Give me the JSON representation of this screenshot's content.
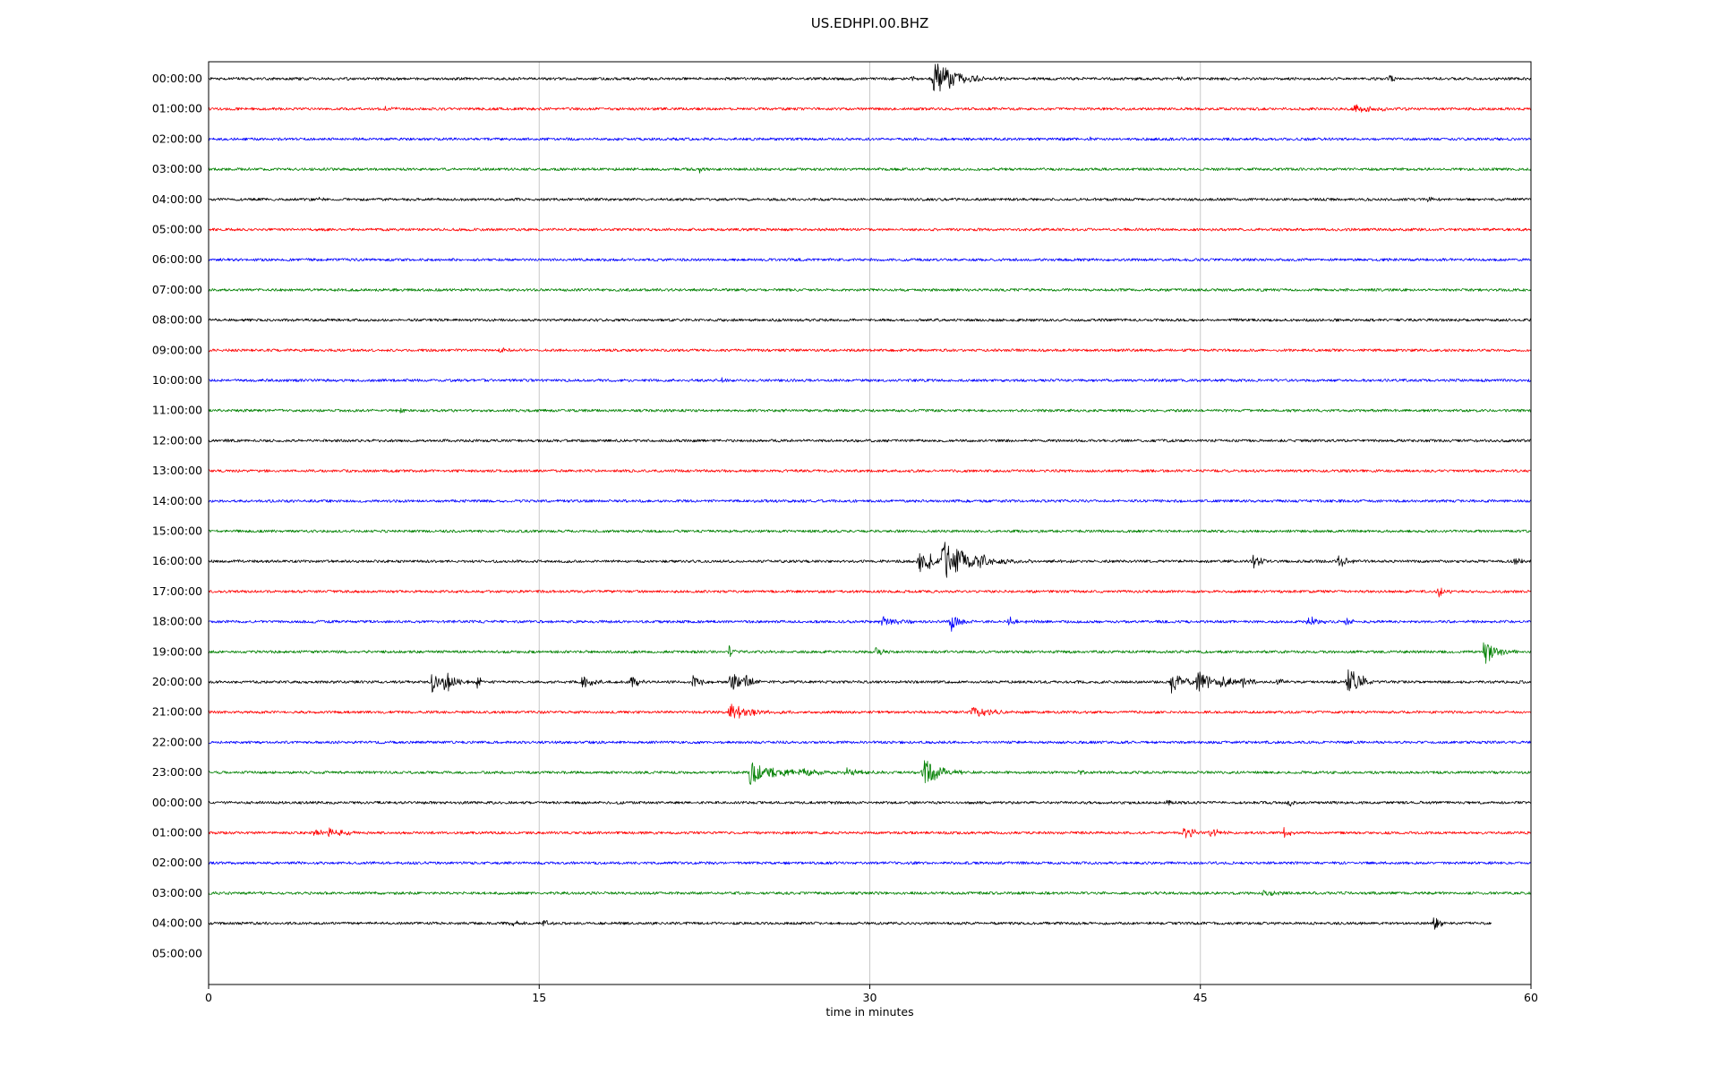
{
  "chart_data": {
    "type": "line",
    "subtype": "seismogram-helicorder",
    "title": "US.EDHPI.00.BHZ",
    "xlabel": "time in minutes",
    "x_range": [
      0,
      60
    ],
    "x_ticks": [
      0,
      15,
      30,
      45,
      60
    ],
    "x_gridlines": [
      15,
      30,
      45
    ],
    "grid_color": "#c8c8c8",
    "trace_colors_cycle": [
      "#000000",
      "#ff0000",
      "#0000ff",
      "#008000"
    ],
    "noise_amp": 1.5,
    "events_format": "[minute, amplitude_px, duration_min]",
    "rows": [
      {
        "label": "00:00:00",
        "color": "#000000",
        "events": [
          [
            31.0,
            4,
            0.12
          ],
          [
            31.9,
            5,
            0.12
          ],
          [
            33.0,
            20,
            0.9
          ],
          [
            33.7,
            9,
            0.5
          ],
          [
            44.0,
            3,
            0.15
          ],
          [
            53.6,
            4,
            0.2
          ]
        ]
      },
      {
        "label": "01:00:00",
        "color": "#ff0000",
        "events": [
          [
            8.0,
            2.5,
            0.3
          ],
          [
            52.0,
            4,
            1.2
          ]
        ]
      },
      {
        "label": "02:00:00",
        "color": "#0000ff",
        "events": [
          [
            40.0,
            2.5,
            0.2
          ]
        ]
      },
      {
        "label": "03:00:00",
        "color": "#008000",
        "events": [
          [
            22.3,
            4,
            0.15
          ],
          [
            25.0,
            3,
            0.12
          ],
          [
            35.0,
            2.5,
            0.2
          ]
        ]
      },
      {
        "label": "04:00:00",
        "color": "#000000",
        "events": [
          [
            5.0,
            2.5,
            0.2
          ],
          [
            55.3,
            4,
            0.25
          ]
        ]
      },
      {
        "label": "05:00:00",
        "color": "#ff0000",
        "events": []
      },
      {
        "label": "06:00:00",
        "color": "#0000ff",
        "events": []
      },
      {
        "label": "07:00:00",
        "color": "#008000",
        "events": []
      },
      {
        "label": "08:00:00",
        "color": "#000000",
        "events": []
      },
      {
        "label": "09:00:00",
        "color": "#ff0000",
        "events": [
          [
            13.2,
            3.5,
            0.4
          ]
        ]
      },
      {
        "label": "10:00:00",
        "color": "#0000ff",
        "events": [
          [
            23.3,
            3,
            0.15
          ]
        ]
      },
      {
        "label": "11:00:00",
        "color": "#008000",
        "events": [
          [
            8.7,
            3.5,
            0.2
          ]
        ]
      },
      {
        "label": "12:00:00",
        "color": "#000000",
        "events": []
      },
      {
        "label": "13:00:00",
        "color": "#ff0000",
        "events": []
      },
      {
        "label": "14:00:00",
        "color": "#0000ff",
        "events": []
      },
      {
        "label": "15:00:00",
        "color": "#008000",
        "events": []
      },
      {
        "label": "16:00:00",
        "color": "#000000",
        "events": [
          [
            32.3,
            15,
            0.7
          ],
          [
            33.4,
            21,
            1.2
          ],
          [
            34.9,
            9,
            0.8
          ],
          [
            47.4,
            7,
            0.35
          ],
          [
            51.3,
            9,
            0.35
          ],
          [
            59.3,
            5,
            0.25
          ]
        ]
      },
      {
        "label": "17:00:00",
        "color": "#ff0000",
        "events": [
          [
            55.8,
            6,
            0.3
          ]
        ]
      },
      {
        "label": "18:00:00",
        "color": "#0000ff",
        "events": [
          [
            30.6,
            5,
            0.8
          ],
          [
            33.7,
            12,
            0.35
          ],
          [
            36.3,
            5,
            0.4
          ],
          [
            49.9,
            7,
            0.4
          ],
          [
            51.6,
            4,
            0.3
          ]
        ]
      },
      {
        "label": "19:00:00",
        "color": "#008000",
        "events": [
          [
            23.6,
            9,
            0.15
          ],
          [
            30.3,
            6,
            0.3
          ],
          [
            45.2,
            3,
            0.2
          ],
          [
            57.9,
            14,
            0.5
          ]
        ]
      },
      {
        "label": "20:00:00",
        "color": "#000000",
        "events": [
          [
            10.1,
            13,
            0.35
          ],
          [
            10.7,
            15,
            0.4
          ],
          [
            12.2,
            7,
            0.25
          ],
          [
            17.0,
            7,
            0.5
          ],
          [
            19.2,
            6,
            0.4
          ],
          [
            22.0,
            7,
            0.35
          ],
          [
            23.7,
            13,
            0.45
          ],
          [
            24.3,
            9,
            0.35
          ],
          [
            43.7,
            13,
            0.5
          ],
          [
            44.9,
            15,
            0.5
          ],
          [
            45.9,
            9,
            0.45
          ],
          [
            46.9,
            7,
            0.4
          ],
          [
            48.5,
            5,
            0.3
          ],
          [
            51.7,
            19,
            0.45
          ],
          [
            52.4,
            7,
            0.3
          ]
        ]
      },
      {
        "label": "21:00:00",
        "color": "#ff0000",
        "events": [
          [
            23.7,
            11,
            0.7
          ],
          [
            24.5,
            6,
            0.6
          ],
          [
            34.7,
            7,
            0.7
          ]
        ]
      },
      {
        "label": "22:00:00",
        "color": "#0000ff",
        "events": []
      },
      {
        "label": "23:00:00",
        "color": "#008000",
        "events": [
          [
            24.6,
            15,
            0.5
          ],
          [
            25.4,
            7,
            1.3
          ],
          [
            27.0,
            5,
            0.8
          ],
          [
            29.0,
            5,
            0.8
          ],
          [
            32.5,
            17,
            0.6
          ],
          [
            33.3,
            6,
            0.6
          ],
          [
            39.5,
            5,
            0.3
          ]
        ]
      },
      {
        "label": "00:00:00",
        "color": "#000000",
        "events": [
          [
            43.5,
            3.5,
            0.2
          ],
          [
            49.0,
            4,
            0.3
          ]
        ]
      },
      {
        "label": "01:00:00",
        "color": "#ff0000",
        "events": [
          [
            4.8,
            5,
            0.4
          ],
          [
            5.5,
            5,
            0.8
          ],
          [
            44.3,
            6,
            0.5
          ],
          [
            45.4,
            6,
            0.4
          ],
          [
            48.8,
            5,
            0.3
          ]
        ]
      },
      {
        "label": "02:00:00",
        "color": "#0000ff",
        "events": []
      },
      {
        "label": "03:00:00",
        "color": "#008000",
        "events": [
          [
            47.9,
            4,
            0.5
          ]
        ]
      },
      {
        "label": "04:00:00",
        "color": "#000000",
        "end_minute": 58.2,
        "events": [
          [
            13.7,
            4,
            0.3
          ],
          [
            15.2,
            5,
            0.2
          ],
          [
            55.6,
            10,
            0.25
          ]
        ]
      },
      {
        "label": "05:00:00",
        "color": null,
        "has_trace": false,
        "events": []
      }
    ]
  }
}
